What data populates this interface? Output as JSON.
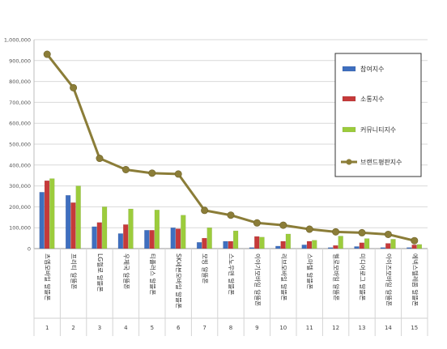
{
  "chart_data": {
    "type": "bar",
    "categories": [
      "츠엠모바일 알뜰폰",
      "프리티 알뜰폰",
      "LG헬로 알뜰폰",
      "우체국 알뜰폰",
      "티플러스 알뜰폰",
      "SK세븐모바일 알뜰폰",
      "모빙 알뜰폰",
      "스노우맨 알뜰폰",
      "이야기모바일 알뜰폰",
      "리브모바일 알뜰폰",
      "스마텔 알뜰폰",
      "헬로모바일 알뜰폰",
      "미디어로그 알뜰폰",
      "아이즈모바일 알뜰폰",
      "에넥스텔레콤 알뜰폰"
    ],
    "x_numbers": [
      "1",
      "2",
      "3",
      "4",
      "5",
      "6",
      "7",
      "8",
      "9",
      "10",
      "11",
      "12",
      "13",
      "14",
      "15"
    ],
    "series": [
      {
        "name": "참여지수",
        "kind": "bar",
        "color": "#3f6fbf",
        "values": [
          270000,
          255000,
          105000,
          72000,
          88000,
          100000,
          30000,
          35000,
          5000,
          12000,
          18000,
          5000,
          10000,
          5000,
          5000
        ]
      },
      {
        "name": "소통지수",
        "kind": "bar",
        "color": "#c63a3a",
        "values": [
          325000,
          220000,
          125000,
          115000,
          88000,
          95000,
          50000,
          35000,
          58000,
          35000,
          35000,
          15000,
          28000,
          25000,
          18000
        ]
      },
      {
        "name": "커뮤니티지수",
        "kind": "bar",
        "color": "#9ccc3c",
        "values": [
          335000,
          300000,
          200000,
          190000,
          185000,
          160000,
          100000,
          85000,
          55000,
          70000,
          40000,
          60000,
          48000,
          45000,
          20000
        ]
      },
      {
        "name": "브랜드평판지수",
        "kind": "line",
        "color": "#8b7d38",
        "values": [
          930000,
          770000,
          432000,
          378000,
          361000,
          357000,
          183000,
          160000,
          123000,
          112000,
          93000,
          80000,
          76000,
          68000,
          38000
        ]
      }
    ],
    "yticks": [
      "0",
      "100,000",
      "200,000",
      "300,000",
      "400,000",
      "500,000",
      "600,000",
      "700,000",
      "800,000",
      "900,000",
      "1,000,000"
    ],
    "ylim": [
      0,
      1000000
    ],
    "grid": true,
    "legend_position": "right"
  }
}
